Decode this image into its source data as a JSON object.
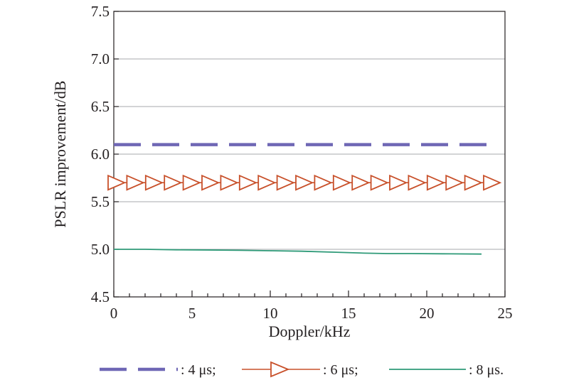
{
  "chart_data": {
    "type": "line",
    "title": "",
    "xlabel": "Doppler/kHz",
    "ylabel": "PSLR improvement/dB",
    "xlim": [
      0,
      25
    ],
    "ylim": [
      4.5,
      7.5
    ],
    "x_ticks": [
      "0",
      "5",
      "10",
      "15",
      "20",
      "25"
    ],
    "y_ticks": [
      "4.5",
      "5.0",
      "5.5",
      "6.0",
      "6.5",
      "7.0",
      "7.5"
    ],
    "grid": "horizontal",
    "legend_position": "bottom",
    "series": [
      {
        "name": ": 4 μs;",
        "color": "#6f67b5",
        "style": "dashed",
        "x": [
          0,
          24
        ],
        "y": [
          6.1,
          6.1
        ]
      },
      {
        "name": ": 6 μs;",
        "color": "#c8502a",
        "style": "line-triangle-markers",
        "x": [
          0,
          1.2,
          2.4,
          3.6,
          4.8,
          6.0,
          7.2,
          8.4,
          9.6,
          10.8,
          12.0,
          13.2,
          14.4,
          15.6,
          16.8,
          18.0,
          19.2,
          20.4,
          21.6,
          22.8,
          24.0
        ],
        "y": [
          5.7,
          5.7,
          5.7,
          5.7,
          5.7,
          5.7,
          5.7,
          5.7,
          5.7,
          5.7,
          5.7,
          5.7,
          5.7,
          5.7,
          5.7,
          5.7,
          5.7,
          5.7,
          5.7,
          5.7,
          5.7
        ]
      },
      {
        "name": ": 8 μs.",
        "color": "#2e9a78",
        "style": "solid",
        "x": [
          0,
          2,
          4,
          6,
          8,
          10,
          12,
          14,
          16,
          17.5,
          19,
          21,
          23.5
        ],
        "y": [
          5.0,
          5.0,
          4.995,
          4.993,
          4.99,
          4.985,
          4.98,
          4.97,
          4.96,
          4.955,
          4.955,
          4.953,
          4.95
        ]
      }
    ]
  }
}
